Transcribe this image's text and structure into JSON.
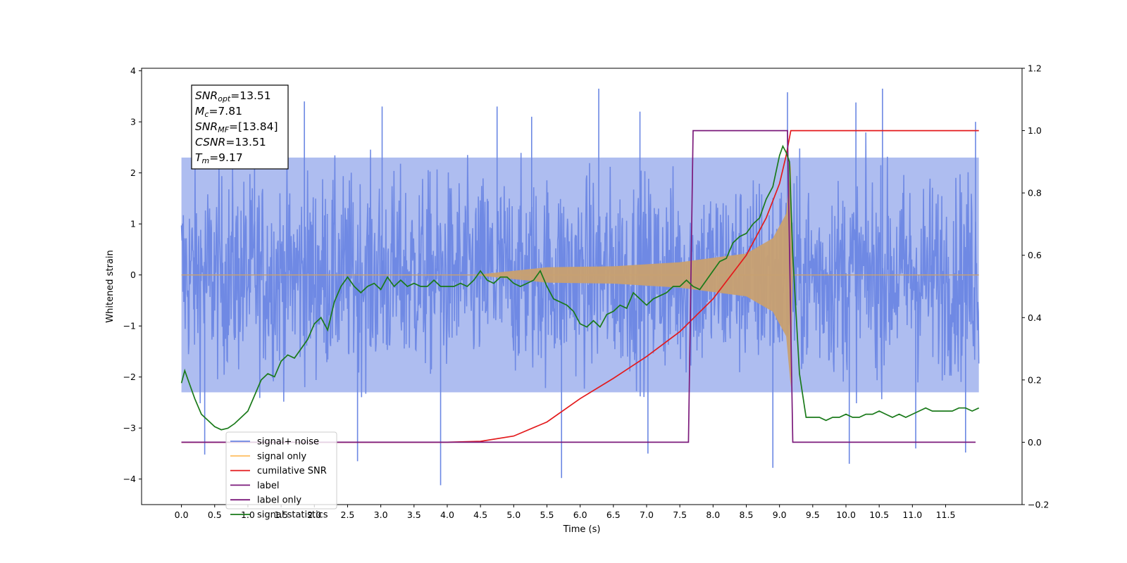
{
  "chart_data": {
    "type": "line",
    "xlabel": "Time (s)",
    "ylabel": "Whitened strain",
    "xlim": [
      -0.6,
      12.65
    ],
    "ylim": [
      -4.5,
      4.05
    ],
    "y2lim": [
      -0.2,
      1.2
    ],
    "x_ticks": [
      "0.0",
      "0.5",
      "1.0",
      "1.5",
      "2.0",
      "2.5",
      "3.0",
      "3.5",
      "4.0",
      "4.5",
      "5.0",
      "5.5",
      "6.0",
      "6.5",
      "7.0",
      "7.5",
      "8.0",
      "8.5",
      "9.0",
      "9.5",
      "10.0",
      "10.5",
      "11.0",
      "11.5"
    ],
    "y_ticks": [
      "−4",
      "−3",
      "−2",
      "−1",
      "0",
      "1",
      "2",
      "3",
      "4"
    ],
    "y2_ticks": [
      "−0.2",
      "0.0",
      "0.2",
      "0.4",
      "0.6",
      "0.8",
      "1.0",
      "1.2"
    ],
    "info_box": [
      {
        "sym": "SNR",
        "sub": "opt",
        "value": "=13.51"
      },
      {
        "sym": "M",
        "sub": "c",
        "value": "=7.81"
      },
      {
        "sym": "SNR",
        "sub": "MF",
        "value": "=[13.84]"
      },
      {
        "sym": "CSNR",
        "sub": "",
        "value": "=13.51"
      },
      {
        "sym": "T",
        "sub": "m",
        "value": "=9.17"
      }
    ],
    "legend": {
      "position": "lower-left",
      "entries": [
        {
          "label": "signal+ noise",
          "color": "#6b87e3"
        },
        {
          "label": "signal only",
          "color": "#ffc066"
        },
        {
          "label": "cumilative SNR",
          "color": "#e31a1c"
        },
        {
          "label": "label",
          "color": "#7b1a7b"
        },
        {
          "label": "label only",
          "color": "#7b1a7b"
        },
        {
          "label": "signal statistics",
          "color": "#1a7a1a"
        }
      ]
    },
    "noise_spikes": {
      "color": "#6b87e3",
      "x_range": [
        0.0,
        12.0
      ],
      "envelope_y": [
        -2.3,
        2.3
      ],
      "peaks": [
        [
          0.35,
          -3.52
        ],
        [
          1.1,
          3.25
        ],
        [
          1.85,
          3.4
        ],
        [
          2.65,
          -3.65
        ],
        [
          3.02,
          3.3
        ],
        [
          3.9,
          -4.12
        ],
        [
          4.75,
          3.3
        ],
        [
          5.27,
          3.1
        ],
        [
          5.72,
          -3.98
        ],
        [
          6.28,
          3.65
        ],
        [
          6.9,
          3.2
        ],
        [
          7.02,
          -3.5
        ],
        [
          8.9,
          -3.78
        ],
        [
          9.12,
          3.58
        ],
        [
          10.05,
          -3.7
        ],
        [
          10.15,
          3.38
        ],
        [
          10.55,
          3.65
        ],
        [
          11.05,
          -3.4
        ],
        [
          11.8,
          -3.48
        ],
        [
          11.95,
          3.0
        ]
      ]
    },
    "series": [
      {
        "name": "signal only",
        "axis": "y",
        "color": "#c8a070",
        "chirp_envelope": [
          [
            0.0,
            0.0
          ],
          [
            4.4,
            0.0
          ],
          [
            5.5,
            0.15
          ],
          [
            6.5,
            0.17
          ],
          [
            7.5,
            0.25
          ],
          [
            8.5,
            0.42
          ],
          [
            8.9,
            0.72
          ],
          [
            9.1,
            1.2
          ],
          [
            9.17,
            2.2
          ],
          [
            9.2,
            0.0
          ],
          [
            12.0,
            0.0
          ]
        ]
      },
      {
        "name": "cumilative SNR",
        "axis": "y2",
        "color": "#e31a1c",
        "x": [
          0.0,
          4.0,
          4.5,
          5.0,
          5.5,
          6.0,
          6.5,
          7.0,
          7.5,
          8.0,
          8.5,
          8.8,
          9.0,
          9.1,
          9.17,
          9.2,
          12.0
        ],
        "y": [
          0.0,
          0.0,
          0.003,
          0.02,
          0.065,
          0.14,
          0.205,
          0.275,
          0.355,
          0.46,
          0.6,
          0.72,
          0.83,
          0.92,
          1.0,
          1.0,
          1.0
        ]
      },
      {
        "name": "label",
        "axis": "y2",
        "color": "#7b1a7b",
        "x": [
          0.0,
          7.63,
          7.7,
          9.12,
          9.2,
          11.95
        ],
        "y": [
          0.0,
          0.0,
          1.0,
          1.0,
          0.0,
          0.0
        ]
      },
      {
        "name": "signal statistics",
        "axis": "y2",
        "color": "#1a7a1a",
        "x": [
          0.0,
          0.05,
          0.1,
          0.2,
          0.3,
          0.4,
          0.5,
          0.6,
          0.7,
          0.8,
          0.9,
          1.0,
          1.1,
          1.2,
          1.3,
          1.4,
          1.5,
          1.6,
          1.7,
          1.8,
          1.9,
          2.0,
          2.1,
          2.2,
          2.3,
          2.4,
          2.5,
          2.6,
          2.7,
          2.8,
          2.9,
          3.0,
          3.1,
          3.2,
          3.3,
          3.4,
          3.5,
          3.6,
          3.7,
          3.8,
          3.9,
          4.0,
          4.1,
          4.2,
          4.3,
          4.4,
          4.5,
          4.6,
          4.7,
          4.8,
          4.9,
          5.0,
          5.1,
          5.2,
          5.3,
          5.4,
          5.5,
          5.6,
          5.7,
          5.8,
          5.9,
          6.0,
          6.1,
          6.2,
          6.3,
          6.4,
          6.5,
          6.6,
          6.7,
          6.8,
          6.9,
          7.0,
          7.1,
          7.2,
          7.3,
          7.4,
          7.5,
          7.6,
          7.7,
          7.8,
          7.9,
          8.0,
          8.1,
          8.2,
          8.3,
          8.4,
          8.5,
          8.6,
          8.7,
          8.8,
          8.9,
          9.0,
          9.05,
          9.1,
          9.15,
          9.2,
          9.3,
          9.4,
          9.5,
          9.6,
          9.7,
          9.8,
          9.9,
          10.0,
          10.1,
          10.2,
          10.3,
          10.4,
          10.5,
          10.6,
          10.7,
          10.8,
          10.9,
          11.0,
          11.1,
          11.2,
          11.3,
          11.4,
          11.5,
          11.6,
          11.7,
          11.8,
          11.9,
          12.0
        ],
        "y": [
          0.19,
          0.23,
          0.2,
          0.14,
          0.09,
          0.07,
          0.05,
          0.04,
          0.045,
          0.06,
          0.08,
          0.1,
          0.15,
          0.2,
          0.22,
          0.21,
          0.26,
          0.28,
          0.27,
          0.3,
          0.33,
          0.38,
          0.4,
          0.36,
          0.45,
          0.5,
          0.53,
          0.5,
          0.48,
          0.5,
          0.51,
          0.49,
          0.53,
          0.5,
          0.52,
          0.5,
          0.51,
          0.5,
          0.5,
          0.52,
          0.5,
          0.5,
          0.5,
          0.51,
          0.5,
          0.52,
          0.55,
          0.52,
          0.51,
          0.53,
          0.53,
          0.51,
          0.5,
          0.51,
          0.52,
          0.55,
          0.5,
          0.46,
          0.45,
          0.44,
          0.42,
          0.38,
          0.37,
          0.39,
          0.37,
          0.41,
          0.42,
          0.44,
          0.43,
          0.48,
          0.46,
          0.44,
          0.46,
          0.47,
          0.48,
          0.5,
          0.5,
          0.52,
          0.5,
          0.49,
          0.52,
          0.55,
          0.58,
          0.59,
          0.64,
          0.66,
          0.67,
          0.7,
          0.72,
          0.78,
          0.82,
          0.92,
          0.95,
          0.93,
          0.9,
          0.6,
          0.22,
          0.08,
          0.08,
          0.08,
          0.07,
          0.08,
          0.08,
          0.09,
          0.08,
          0.08,
          0.09,
          0.09,
          0.1,
          0.09,
          0.08,
          0.09,
          0.08,
          0.09,
          0.1,
          0.11,
          0.1,
          0.1,
          0.1,
          0.1,
          0.11,
          0.11,
          0.1,
          0.11
        ]
      }
    ]
  }
}
